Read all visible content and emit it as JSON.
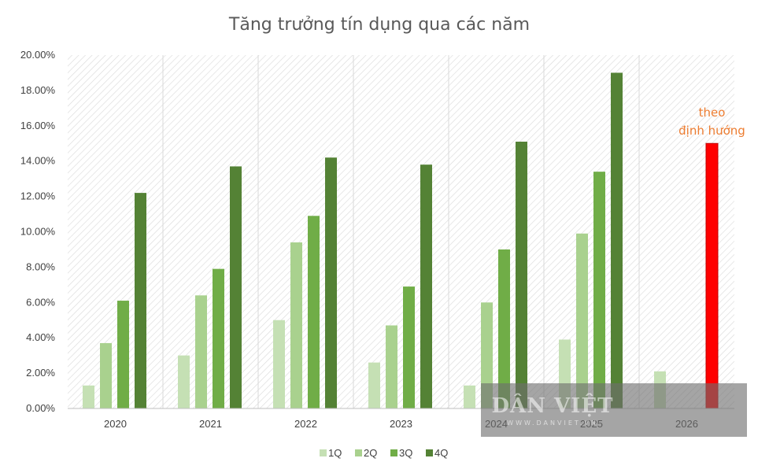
{
  "chart_data": {
    "type": "bar",
    "title": "Tăng trưởng tín dụng qua các năm",
    "xlabel": "",
    "ylabel": "",
    "ylim": [
      0,
      20
    ],
    "y_ticks": [
      "0.00%",
      "2.00%",
      "4.00%",
      "6.00%",
      "8.00%",
      "10.00%",
      "12.00%",
      "14.00%",
      "16.00%",
      "18.00%",
      "20.00%"
    ],
    "categories": [
      "2020",
      "2021",
      "2022",
      "2023",
      "2024",
      "2025",
      "2026"
    ],
    "series": [
      {
        "name": "1Q",
        "color": "#c5e0b4",
        "values": [
          1.3,
          3.0,
          5.0,
          2.6,
          1.3,
          3.9,
          2.1
        ]
      },
      {
        "name": "2Q",
        "color": "#a9d18e",
        "values": [
          3.7,
          6.4,
          9.4,
          4.7,
          6.0,
          9.9,
          null
        ]
      },
      {
        "name": "3Q",
        "color": "#70ad47",
        "values": [
          6.1,
          7.9,
          10.9,
          6.9,
          9.0,
          13.4,
          null
        ]
      },
      {
        "name": "4Q",
        "color": "#548235",
        "values": [
          12.2,
          13.7,
          14.2,
          13.8,
          15.1,
          19.0,
          15.0
        ]
      }
    ],
    "highlight": {
      "category": "2026",
      "series": "4Q",
      "color": "#ff0000"
    },
    "annotation": {
      "lines": [
        "theo",
        "định hướng"
      ],
      "color": "#ed7d31"
    },
    "grid": true,
    "legend_position": "bottom"
  },
  "watermark": {
    "text": "DÂN VIỆT",
    "subtext": "WWW.DANVIET.VN"
  }
}
